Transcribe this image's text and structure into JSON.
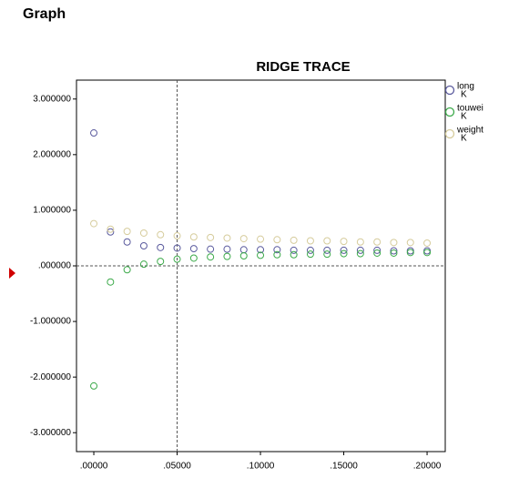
{
  "header": {
    "title": "Graph"
  },
  "chart_data": {
    "type": "scatter",
    "title": "RIDGE TRACE",
    "x": [
      0,
      0.01,
      0.02,
      0.03,
      0.04,
      0.05,
      0.06,
      0.07,
      0.08,
      0.09,
      0.1,
      0.11,
      0.12,
      0.13,
      0.14,
      0.15,
      0.16,
      0.17,
      0.18,
      0.19,
      0.2
    ],
    "series": [
      {
        "name": "long",
        "color": "#5b5b9e",
        "values": [
          2.39,
          0.61,
          0.43,
          0.36,
          0.33,
          0.32,
          0.31,
          0.3,
          0.3,
          0.29,
          0.29,
          0.29,
          0.28,
          0.28,
          0.28,
          0.28,
          0.28,
          0.28,
          0.27,
          0.27,
          0.27
        ]
      },
      {
        "name": "touwei",
        "color": "#3caa4a",
        "values": [
          -2.16,
          -0.29,
          -0.07,
          0.03,
          0.08,
          0.12,
          0.14,
          0.16,
          0.17,
          0.18,
          0.19,
          0.2,
          0.2,
          0.21,
          0.21,
          0.22,
          0.22,
          0.23,
          0.23,
          0.24,
          0.24
        ]
      },
      {
        "name": "weight",
        "color": "#d6cc9c",
        "values": [
          0.76,
          0.66,
          0.62,
          0.59,
          0.56,
          0.54,
          0.52,
          0.51,
          0.5,
          0.49,
          0.48,
          0.47,
          0.46,
          0.45,
          0.45,
          0.44,
          0.43,
          0.43,
          0.42,
          0.42,
          0.41
        ]
      }
    ],
    "legend_note": "K",
    "xlim": [
      -0.0104,
      0.2109
    ],
    "ylim": [
      -3.34,
      3.34
    ],
    "xticks": [
      {
        "value": 0,
        "label": ".00000"
      },
      {
        "value": 0.05,
        "label": ".05000"
      },
      {
        "value": 0.1,
        "label": ".10000"
      },
      {
        "value": 0.15,
        "label": ".15000"
      },
      {
        "value": 0.2,
        "label": ".20000"
      }
    ],
    "yticks": [
      {
        "value": 3,
        "label": "3.000000"
      },
      {
        "value": 2,
        "label": "2.000000"
      },
      {
        "value": 1,
        "label": "1.000000"
      },
      {
        "value": 0,
        "label": ".000000"
      },
      {
        "value": -1,
        "label": "-1.000000"
      },
      {
        "value": -2,
        "label": "-2.000000"
      },
      {
        "value": -3,
        "label": "-3.000000"
      }
    ],
    "ref_x": 0.05,
    "ref_y": 0
  }
}
